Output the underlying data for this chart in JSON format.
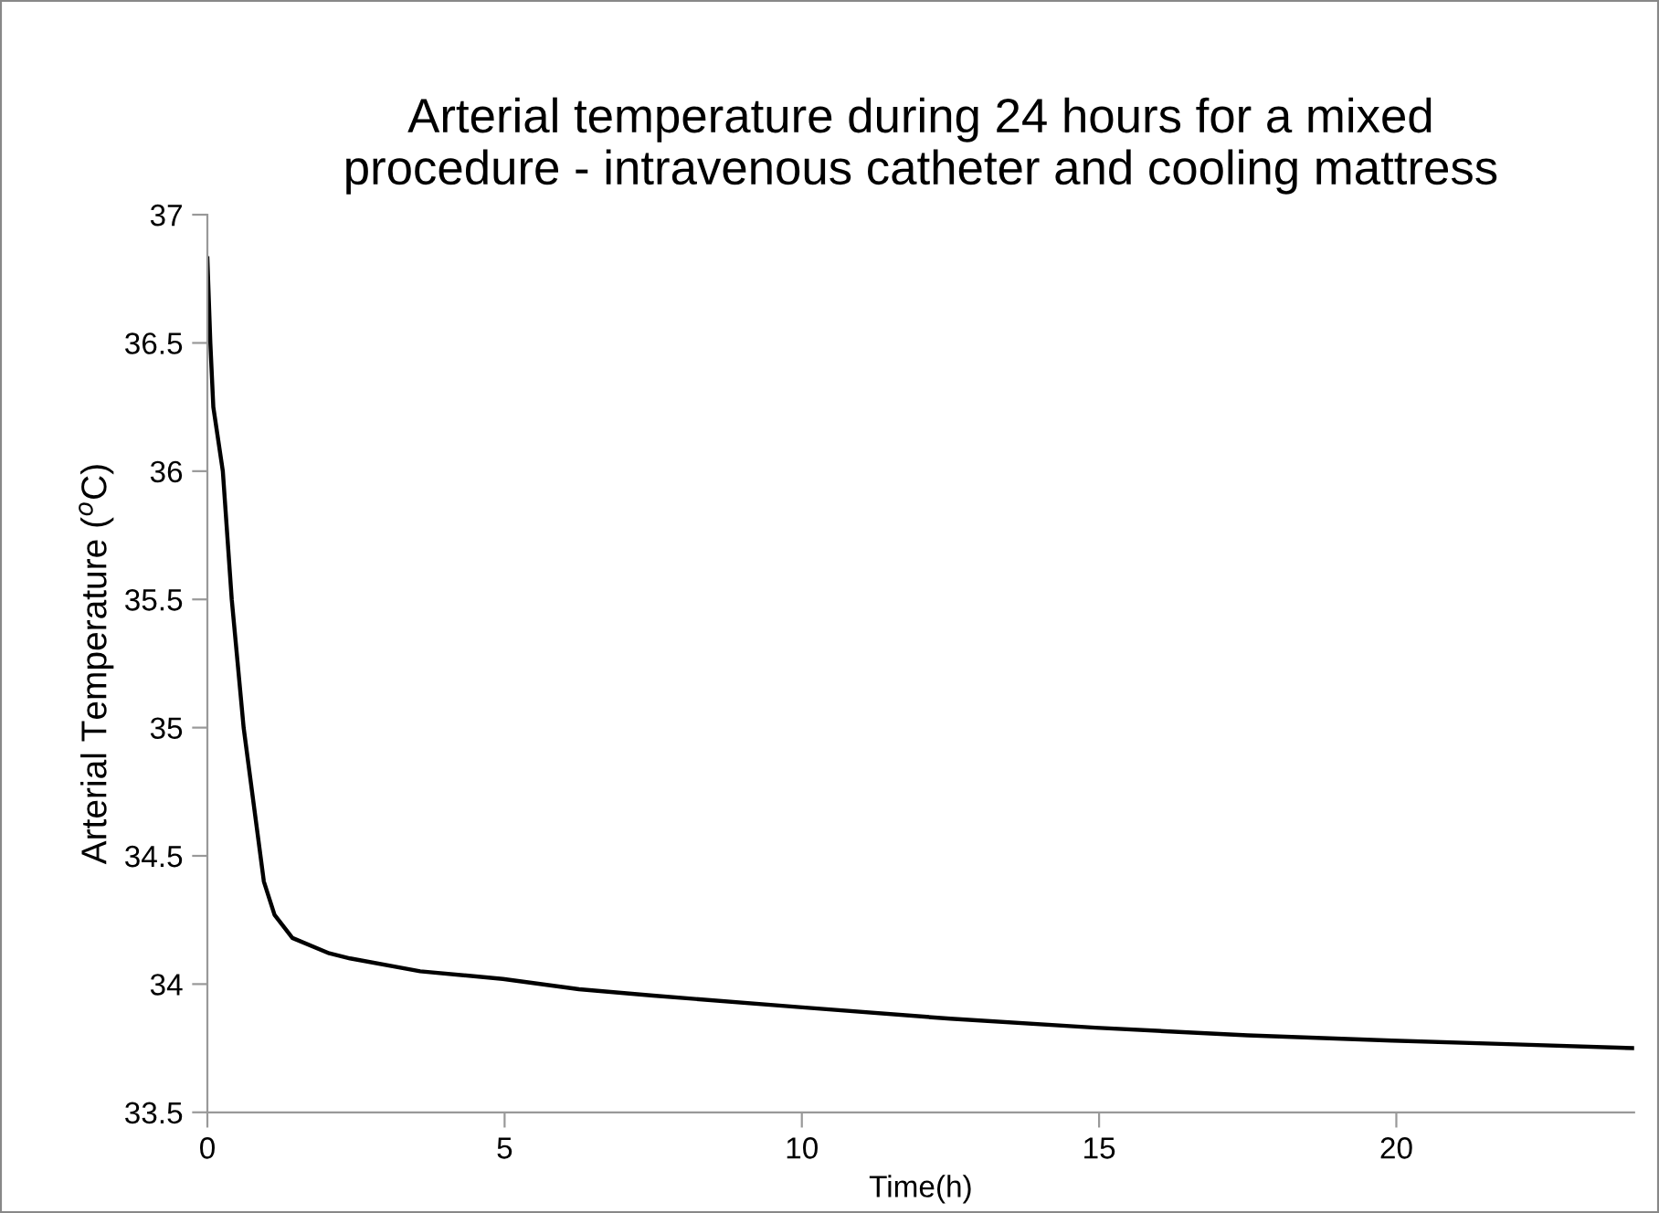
{
  "chart_data": {
    "type": "line",
    "title": "Arterial temperature during 24 hours for a mixed\nprocedure - intravenous catheter and cooling mattress",
    "xlabel": "Time(h)",
    "ylabel": "Arterial Temperature ($^{o}$C)",
    "series": [
      {
        "color": "#000000",
        "x": [
          0,
          0.05,
          0.1,
          0.26,
          0.41,
          0.61,
          0.95,
          1.13,
          1.43,
          2.05,
          2.4,
          3.58,
          4.97,
          6.25,
          7.5,
          9.96,
          12.5,
          14.94,
          17.5,
          19.93,
          22,
          24
        ],
        "values": [
          36.83,
          36.5,
          36.25,
          36.0,
          35.5,
          35.0,
          34.4,
          34.27,
          34.18,
          34.12,
          34.1,
          34.05,
          34.02,
          33.98,
          33.955,
          33.91,
          33.865,
          33.83,
          33.8,
          33.78,
          33.765,
          33.75
        ]
      }
    ],
    "xlim": [
      0,
      24
    ],
    "xticks": [
      0,
      5,
      10,
      15,
      20
    ],
    "ylim": [
      33.5,
      37
    ],
    "yticks": [
      33.5,
      34,
      34.5,
      35,
      35.5,
      36,
      36.5,
      37
    ],
    "grid": false,
    "legend": false,
    "marker": "none",
    "line_style": "solid"
  }
}
